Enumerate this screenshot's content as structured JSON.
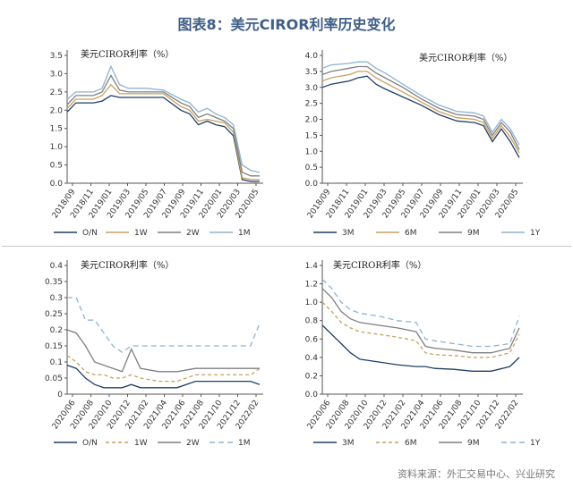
{
  "figure": {
    "title": "图表8：美元CIROR利率历史变化",
    "source": "资料来源：外汇交易中心、兴业研究"
  },
  "chart_data": [
    {
      "type": "line",
      "title": "美元CIROR利率（%）",
      "ylim": [
        0,
        3.5
      ],
      "yticks": [
        "0.0",
        "0.5",
        "1.0",
        "1.5",
        "2.0",
        "2.5",
        "3.0",
        "3.5"
      ],
      "x_ticks": [
        "2018/09",
        "2018/11",
        "2019/01",
        "2019/03",
        "2019/05",
        "2019/07",
        "2019/09",
        "2019/11",
        "2020/01",
        "2020/03",
        "2020/05"
      ],
      "x": [
        "2018/08",
        "2018/09",
        "2018/11",
        "2018/12",
        "2019/01",
        "2019/02",
        "2019/03",
        "2019/05",
        "2019/07",
        "2019/09",
        "2019/10",
        "2019/11",
        "2019/12",
        "2020/01",
        "2020/02",
        "2020/03",
        "2020/04",
        "2020/05",
        "2020/06"
      ],
      "series": [
        {
          "name": "O/N",
          "color": "#1f3f66",
          "dash": "",
          "values": [
            1.95,
            2.2,
            2.2,
            2.25,
            2.4,
            2.35,
            2.35,
            2.35,
            2.35,
            2.0,
            1.9,
            1.6,
            1.7,
            1.6,
            1.55,
            1.3,
            0.1,
            0.05,
            0.05
          ]
        },
        {
          "name": "1W",
          "color": "#c8a060",
          "dash": "",
          "values": [
            2.05,
            2.3,
            2.3,
            2.4,
            2.7,
            2.45,
            2.45,
            2.45,
            2.45,
            2.1,
            2.0,
            1.7,
            1.75,
            1.7,
            1.65,
            1.4,
            0.15,
            0.1,
            0.1
          ]
        },
        {
          "name": "2W",
          "color": "#7f7f7f",
          "dash": "",
          "values": [
            2.15,
            2.4,
            2.4,
            2.5,
            2.95,
            2.55,
            2.5,
            2.5,
            2.5,
            2.2,
            2.1,
            1.8,
            1.9,
            1.8,
            1.7,
            1.5,
            0.3,
            0.2,
            0.2
          ]
        },
        {
          "name": "1M",
          "color": "#8fb3d0",
          "dash": "",
          "values": [
            2.3,
            2.5,
            2.5,
            2.6,
            3.2,
            2.7,
            2.6,
            2.6,
            2.55,
            2.3,
            2.2,
            1.95,
            2.05,
            1.9,
            1.8,
            1.6,
            0.5,
            0.35,
            0.3
          ]
        }
      ]
    },
    {
      "type": "line",
      "title": "美元CIROR利率（%）",
      "ylim": [
        0,
        4.0
      ],
      "yticks": [
        "0.0",
        "0.5",
        "1.0",
        "1.5",
        "2.0",
        "2.5",
        "3.0",
        "3.5",
        "4.0"
      ],
      "x_ticks": [
        "2018/09",
        "2018/11",
        "2019/01",
        "2019/03",
        "2019/05",
        "2019/07",
        "2019/09",
        "2019/11",
        "2020/01",
        "2020/03",
        "2020/05"
      ],
      "x": [
        "2018/08",
        "2018/09",
        "2018/11",
        "2018/12",
        "2019/01",
        "2019/02",
        "2019/03",
        "2019/05",
        "2019/07",
        "2019/09",
        "2019/11",
        "2020/01",
        "2020/02",
        "2020/03",
        "2020/04",
        "2020/05",
        "2020/06"
      ],
      "series": [
        {
          "name": "3M",
          "color": "#1f3f66",
          "dash": "",
          "values": [
            3.0,
            3.1,
            3.2,
            3.3,
            3.35,
            3.1,
            2.95,
            2.7,
            2.45,
            2.15,
            1.95,
            1.9,
            1.8,
            1.3,
            1.7,
            1.3,
            0.8
          ]
        },
        {
          "name": "6M",
          "color": "#c8a060",
          "dash": "",
          "values": [
            3.2,
            3.3,
            3.4,
            3.5,
            3.5,
            3.3,
            3.15,
            2.85,
            2.55,
            2.25,
            2.05,
            2.0,
            1.9,
            1.4,
            1.8,
            1.45,
            0.95
          ]
        },
        {
          "name": "9M",
          "color": "#7f7f7f",
          "dash": "",
          "values": [
            3.4,
            3.5,
            3.6,
            3.65,
            3.65,
            3.45,
            3.3,
            3.0,
            2.65,
            2.35,
            2.15,
            2.1,
            2.0,
            1.5,
            1.9,
            1.6,
            1.05
          ]
        },
        {
          "name": "1Y",
          "color": "#8fb3d0",
          "dash": "",
          "values": [
            3.6,
            3.7,
            3.75,
            3.8,
            3.8,
            3.6,
            3.45,
            3.1,
            2.75,
            2.45,
            2.25,
            2.2,
            2.1,
            1.6,
            2.0,
            1.7,
            1.2
          ]
        }
      ]
    },
    {
      "type": "line",
      "title": "美元CIROR利率（%）",
      "ylim": [
        0,
        0.4
      ],
      "yticks": [
        "0",
        "0.05",
        "0.1",
        "0.15",
        "0.2",
        "0.25",
        "0.3",
        "0.35",
        "0.4"
      ],
      "x_ticks": [
        "2020/06",
        "2020/08",
        "2020/10",
        "2020/12",
        "2021/02",
        "2021/04",
        "2021/06",
        "2021/08",
        "2021/10",
        "2021/12",
        "2022/02"
      ],
      "x": [
        "2020/06",
        "2020/07",
        "2020/08",
        "2020/09",
        "2020/10",
        "2020/11",
        "2020/12",
        "2021/01",
        "2021/02",
        "2021/04",
        "2021/06",
        "2021/08",
        "2021/10",
        "2021/12",
        "2022/02",
        "2022/03"
      ],
      "series": [
        {
          "name": "O/N",
          "color": "#1f3f66",
          "dash": "",
          "values": [
            0.09,
            0.08,
            0.05,
            0.03,
            0.02,
            0.02,
            0.02,
            0.03,
            0.02,
            0.02,
            0.02,
            0.04,
            0.04,
            0.04,
            0.04,
            0.03
          ]
        },
        {
          "name": "1W",
          "color": "#c8a060",
          "dash": "4,3",
          "values": [
            0.12,
            0.1,
            0.07,
            0.06,
            0.06,
            0.05,
            0.05,
            0.06,
            0.05,
            0.04,
            0.04,
            0.06,
            0.06,
            0.06,
            0.06,
            0.08
          ]
        },
        {
          "name": "2W",
          "color": "#7f7f7f",
          "dash": "",
          "values": [
            0.2,
            0.19,
            0.15,
            0.1,
            0.09,
            0.08,
            0.07,
            0.14,
            0.08,
            0.07,
            0.07,
            0.08,
            0.08,
            0.08,
            0.08,
            0.08
          ]
        },
        {
          "name": "1M",
          "color": "#8fb3d0",
          "dash": "6,4",
          "values": [
            0.3,
            0.3,
            0.23,
            0.23,
            0.19,
            0.15,
            0.13,
            0.15,
            0.15,
            0.15,
            0.15,
            0.15,
            0.15,
            0.15,
            0.15,
            0.22
          ]
        }
      ]
    },
    {
      "type": "line",
      "title": "美元CIROR利率（%）",
      "ylim": [
        0,
        1.4
      ],
      "yticks": [
        "0.0",
        "0.2",
        "0.4",
        "0.6",
        "0.8",
        "1.0",
        "1.2",
        "1.4"
      ],
      "x_ticks": [
        "2020/06",
        "2020/08",
        "2020/10",
        "2020/12",
        "2021/02",
        "2021/04",
        "2021/06",
        "2021/08",
        "2021/10",
        "2021/12",
        "2022/02"
      ],
      "x": [
        "2020/06",
        "2020/07",
        "2020/08",
        "2020/09",
        "2020/10",
        "2020/12",
        "2021/02",
        "2021/04",
        "2021/05",
        "2021/06",
        "2021/08",
        "2021/10",
        "2021/12",
        "2022/02",
        "2022/03"
      ],
      "series": [
        {
          "name": "3M",
          "color": "#1f3f66",
          "dash": "",
          "values": [
            0.75,
            0.65,
            0.55,
            0.45,
            0.38,
            0.35,
            0.32,
            0.3,
            0.3,
            0.28,
            0.27,
            0.25,
            0.25,
            0.3,
            0.4
          ]
        },
        {
          "name": "6M",
          "color": "#c8a060",
          "dash": "4,3",
          "values": [
            1.0,
            0.9,
            0.78,
            0.72,
            0.68,
            0.65,
            0.62,
            0.58,
            0.45,
            0.43,
            0.42,
            0.4,
            0.4,
            0.45,
            0.65
          ]
        },
        {
          "name": "9M",
          "color": "#7f7f7f",
          "dash": "",
          "values": [
            1.15,
            1.05,
            0.9,
            0.82,
            0.78,
            0.75,
            0.72,
            0.68,
            0.52,
            0.5,
            0.48,
            0.45,
            0.45,
            0.5,
            0.72
          ]
        },
        {
          "name": "1Y",
          "color": "#8fb3d0",
          "dash": "6,4",
          "values": [
            1.25,
            1.15,
            1.0,
            0.92,
            0.88,
            0.85,
            0.8,
            0.78,
            0.6,
            0.58,
            0.55,
            0.52,
            0.52,
            0.55,
            0.85
          ]
        }
      ]
    }
  ]
}
